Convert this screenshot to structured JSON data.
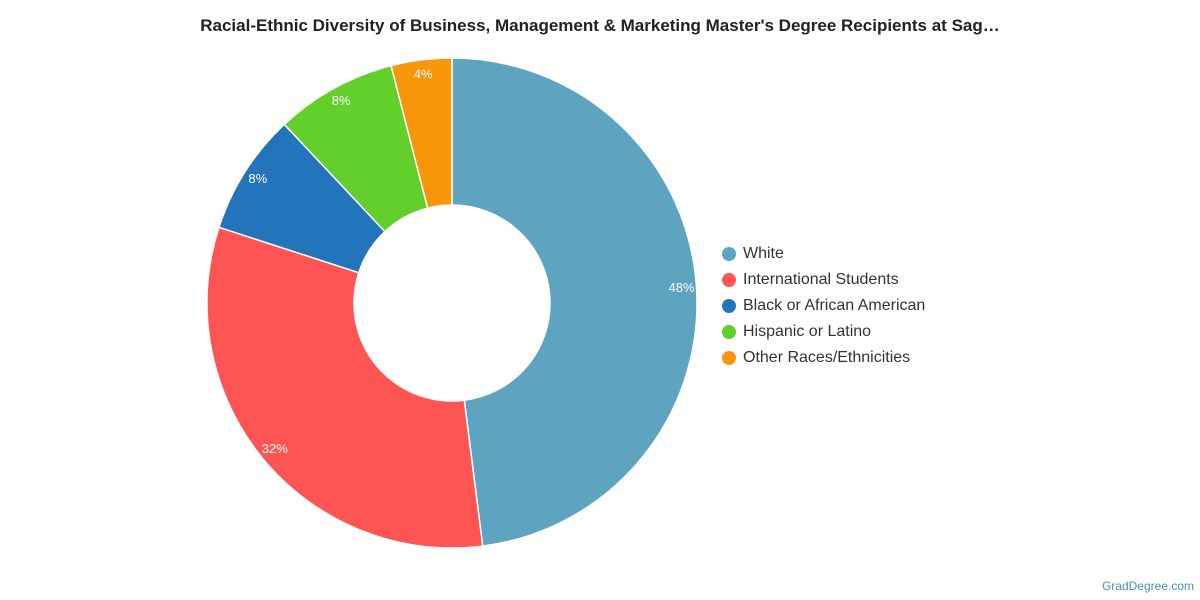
{
  "chart_data": {
    "type": "pie",
    "variant": "donut",
    "title": "Racial-Ethnic Diversity of Business, Management & Marketing Master's Degree Recipients at Sag…",
    "slices": [
      {
        "label": "White",
        "value": 48,
        "display": "48%",
        "color": "#5ea3c0"
      },
      {
        "label": "International Students",
        "value": 32,
        "display": "32%",
        "color": "#ff5454"
      },
      {
        "label": "Black or African American",
        "value": 8,
        "display": "8%",
        "color": "#2275ba"
      },
      {
        "label": "Hispanic or Latino",
        "value": 8,
        "display": "8%",
        "color": "#62cf2a"
      },
      {
        "label": "Other Races/Ethnicities",
        "value": 4,
        "display": "4%",
        "color": "#f7960a"
      }
    ],
    "start_direction": "top",
    "direction": "clockwise",
    "legend_position": "right"
  },
  "credit": "GradDegree.com"
}
